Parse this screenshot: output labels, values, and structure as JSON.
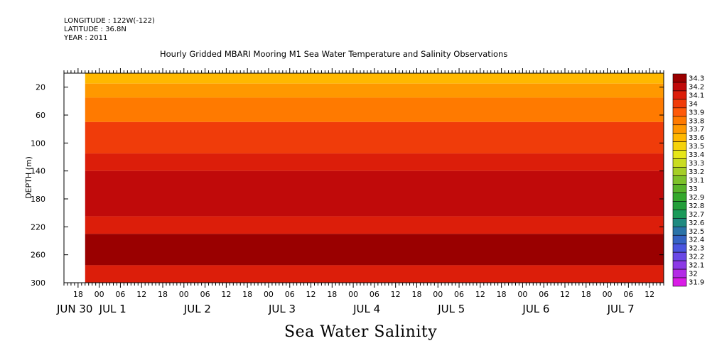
{
  "header": {
    "longitude": "LONGITUDE : 122W(-122)",
    "latitude": "LATITUDE : 36.8N",
    "year": "YEAR : 2011"
  },
  "chart_data": {
    "type": "heatmap",
    "title": "Hourly Gridded MBARI Mooring M1 Sea Water Temperature and Salinity Observations",
    "variable": "Sea Water Salinity",
    "ylabel": "DEPTH (m)",
    "ylim": [
      300,
      0
    ],
    "y_ticks": [
      20,
      60,
      100,
      140,
      180,
      220,
      260,
      300
    ],
    "x_range": [
      "2011-06-30T14:00",
      "2011-07-07T16:00"
    ],
    "x_hour_ticks": [
      "18",
      "00",
      "06",
      "12",
      "18",
      "00",
      "06",
      "12",
      "18",
      "00",
      "06",
      "12",
      "18",
      "00",
      "06",
      "12",
      "18",
      "00",
      "06",
      "12",
      "18",
      "00",
      "06",
      "12",
      "18",
      "00",
      "06",
      "12"
    ],
    "x_day_labels": [
      "JUN 30",
      "JUL  1",
      "JUL  2",
      "JUL  3",
      "JUL  4",
      "JUL  5",
      "JUL  6",
      "JUL  7"
    ],
    "data_start": "2011-06-30T20:00",
    "colorbar": {
      "levels": [
        "31.9",
        "32",
        "32.1",
        "32.2",
        "32.3",
        "32.4",
        "32.5",
        "32.6",
        "32.7",
        "32.8",
        "32.9",
        "33",
        "33.1",
        "33.2",
        "33.3",
        "33.4",
        "33.5",
        "33.6",
        "33.7",
        "33.8",
        "33.9",
        "34",
        "34.1",
        "34.2",
        "34.3"
      ],
      "colors": [
        "#d91ce6",
        "#b32be6",
        "#8c3ae6",
        "#6a48e6",
        "#4a55e0",
        "#3563c4",
        "#2a73a8",
        "#1f8a80",
        "#1a9a5a",
        "#239e3a",
        "#34a82c",
        "#58b42a",
        "#7ec22a",
        "#a6cf26",
        "#c9dc20",
        "#e6e618",
        "#f5d20a",
        "#ffb800",
        "#ff9800",
        "#ff7a00",
        "#ff5a0a",
        "#f03c0a",
        "#dc1e0a",
        "#c00a0a",
        "#9a0000"
      ]
    },
    "depth_bands": [
      {
        "from_depth": 0,
        "to_depth": 15,
        "value": 33.6
      },
      {
        "from_depth": 15,
        "to_depth": 35,
        "value": 33.7
      },
      {
        "from_depth": 35,
        "to_depth": 70,
        "value": 33.8
      },
      {
        "from_depth": 70,
        "to_depth": 115,
        "value": 34.0
      },
      {
        "from_depth": 115,
        "to_depth": 140,
        "value": 34.1
      },
      {
        "from_depth": 140,
        "to_depth": 205,
        "value": 34.2
      },
      {
        "from_depth": 205,
        "to_depth": 230,
        "value": 34.1
      },
      {
        "from_depth": 230,
        "to_depth": 275,
        "value": 34.3
      },
      {
        "from_depth": 275,
        "to_depth": 300,
        "value": 34.1
      }
    ]
  },
  "footer": {
    "label": "Sea Water Salinity"
  }
}
